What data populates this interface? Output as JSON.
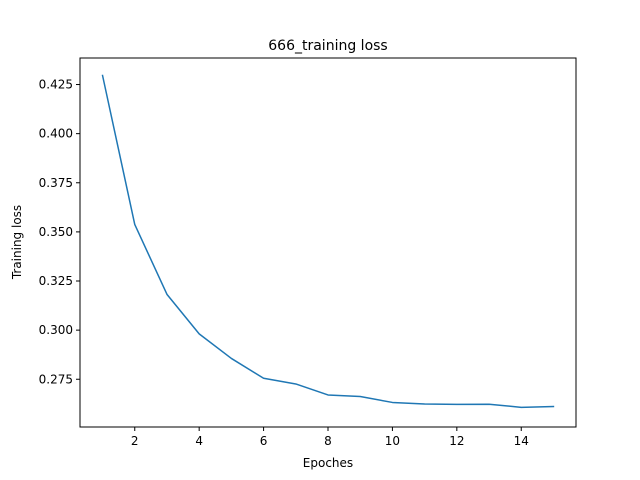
{
  "chart_data": {
    "type": "line",
    "title": "666_training loss",
    "xlabel": "Epoches",
    "ylabel": "Training loss",
    "xlim": [
      0.3,
      15.7
    ],
    "ylim": [
      0.2507,
      0.4385
    ],
    "xticks": [
      2,
      4,
      6,
      8,
      10,
      12,
      14
    ],
    "yticks": [
      0.275,
      0.3,
      0.325,
      0.35,
      0.375,
      0.4,
      0.425
    ],
    "ytick_labels": [
      "0.275",
      "0.300",
      "0.325",
      "0.350",
      "0.375",
      "0.400",
      "0.425"
    ],
    "grid": false,
    "series": [
      {
        "color": "#1f77b4",
        "x": [
          1,
          2,
          3,
          4,
          5,
          6,
          7,
          8,
          9,
          10,
          11,
          12,
          13,
          14,
          15
        ],
        "y": [
          0.4296,
          0.3538,
          0.3182,
          0.2981,
          0.2856,
          0.2755,
          0.2726,
          0.267,
          0.2662,
          0.2632,
          0.2624,
          0.2622,
          0.2623,
          0.2607,
          0.2611
        ]
      }
    ]
  }
}
